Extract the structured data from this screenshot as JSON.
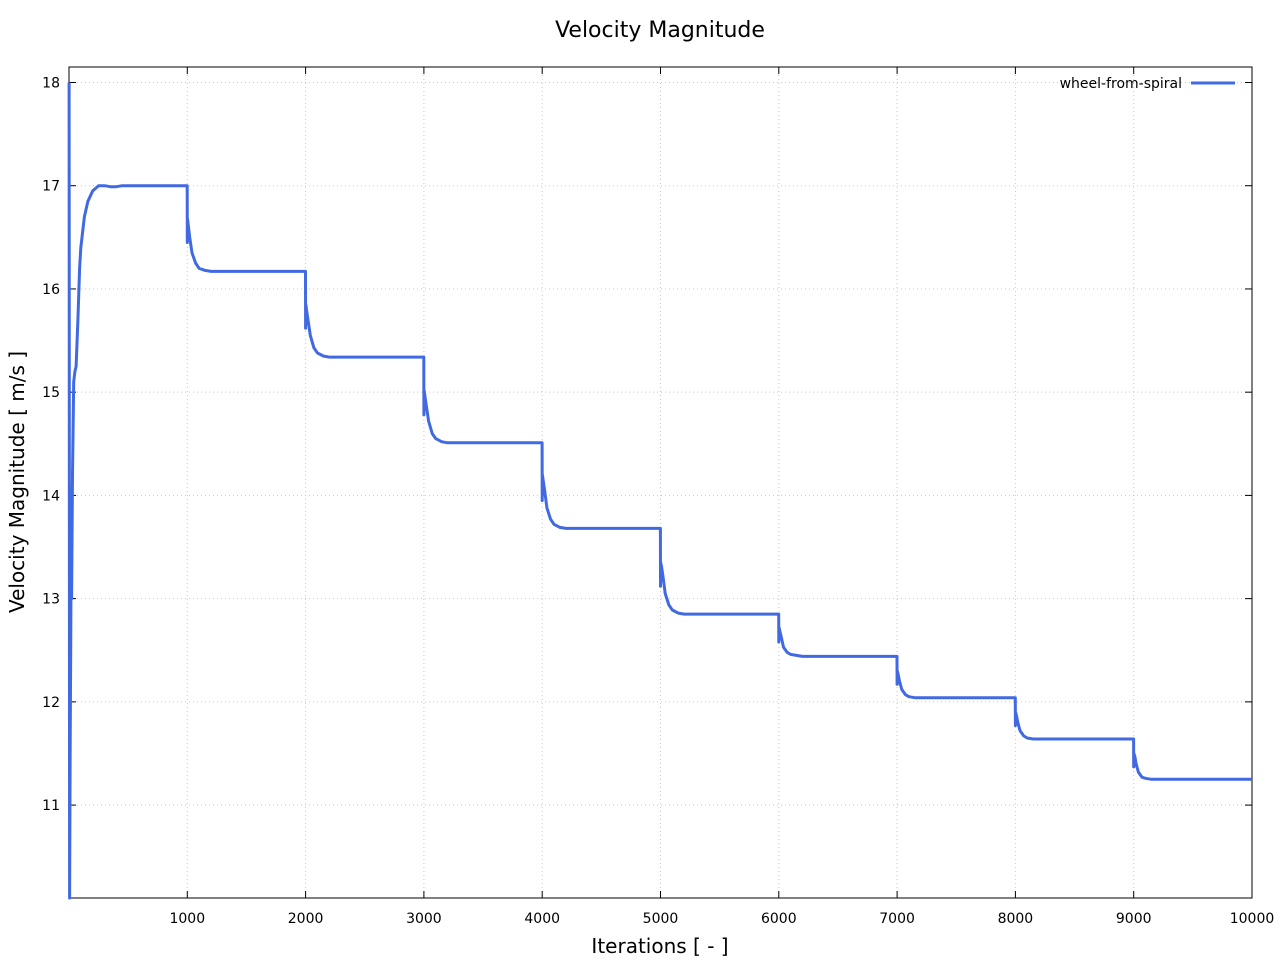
{
  "chart_data": {
    "type": "line",
    "title": "Velocity Magnitude",
    "xlabel": "Iterations [ - ]",
    "ylabel": "Velocity Magnitude [ m/s ]",
    "xlim": [
      0,
      10000
    ],
    "ylim": [
      10.1,
      18.15
    ],
    "xticks": [
      1000,
      2000,
      3000,
      4000,
      5000,
      6000,
      7000,
      8000,
      9000,
      10000
    ],
    "xtick_labels": [
      "1000",
      "2000",
      "3000",
      "4000",
      "5000",
      "6000",
      "7000",
      "8000",
      "9000",
      "10000"
    ],
    "yticks": [
      11,
      12,
      13,
      14,
      15,
      16,
      17,
      18
    ],
    "ytick_labels": [
      "11",
      "12",
      "13",
      "14",
      "15",
      "16",
      "17",
      "18"
    ],
    "grid": true,
    "legend_position": "top-right",
    "series": [
      {
        "name": "wheel-from-spiral",
        "color": "#4169e1",
        "x": [
          1,
          5,
          10,
          14,
          18,
          22,
          30,
          40,
          50,
          60,
          75,
          90,
          100,
          130,
          160,
          200,
          250,
          300,
          350,
          400,
          450,
          500,
          600,
          700,
          800,
          900,
          999,
          1000,
          1002,
          1010,
          1020,
          1040,
          1070,
          1100,
          1150,
          1200,
          1300,
          1400,
          1600,
          1800,
          1999,
          2000,
          2002,
          2010,
          2020,
          2040,
          2070,
          2100,
          2150,
          2200,
          2300,
          2400,
          2600,
          2800,
          2999,
          3000,
          3002,
          3010,
          3020,
          3040,
          3070,
          3100,
          3150,
          3200,
          3300,
          3400,
          3600,
          3800,
          3999,
          4000,
          4002,
          4010,
          4020,
          4040,
          4070,
          4100,
          4150,
          4200,
          4300,
          4400,
          4600,
          4800,
          4999,
          5000,
          5002,
          5010,
          5020,
          5040,
          5070,
          5100,
          5150,
          5200,
          5300,
          5400,
          5600,
          5800,
          5999,
          6000,
          6002,
          6010,
          6020,
          6040,
          6070,
          6100,
          6150,
          6200,
          6300,
          6400,
          6600,
          6800,
          6999,
          7000,
          7002,
          7010,
          7020,
          7040,
          7070,
          7100,
          7150,
          7200,
          7300,
          7400,
          7600,
          7800,
          7999,
          8000,
          8002,
          8010,
          8020,
          8040,
          8070,
          8100,
          8150,
          8200,
          8300,
          8400,
          8600,
          8800,
          8999,
          9000,
          9002,
          9010,
          9020,
          9040,
          9070,
          9100,
          9150,
          9200,
          9300,
          9400,
          9600,
          9800,
          10000
        ],
        "y": [
          18.0,
          10.1,
          11.6,
          12.5,
          13.4,
          13.0,
          14.2,
          15.1,
          15.2,
          15.25,
          15.7,
          16.2,
          16.4,
          16.7,
          16.85,
          16.95,
          17.0,
          17.0,
          16.99,
          16.99,
          17.0,
          17.0,
          17.0,
          17.0,
          17.0,
          17.0,
          17.0,
          16.45,
          16.68,
          16.6,
          16.5,
          16.35,
          16.25,
          16.2,
          16.18,
          16.17,
          16.17,
          16.17,
          16.17,
          16.17,
          16.17,
          15.62,
          15.85,
          15.78,
          15.7,
          15.55,
          15.43,
          15.38,
          15.35,
          15.34,
          15.34,
          15.34,
          15.34,
          15.34,
          15.34,
          14.78,
          15.02,
          14.95,
          14.87,
          14.72,
          14.6,
          14.55,
          14.52,
          14.51,
          14.51,
          14.51,
          14.51,
          14.51,
          14.51,
          13.95,
          14.2,
          14.13,
          14.05,
          13.88,
          13.77,
          13.72,
          13.69,
          13.68,
          13.68,
          13.68,
          13.68,
          13.68,
          13.68,
          13.12,
          13.35,
          13.3,
          13.22,
          13.05,
          12.94,
          12.89,
          12.86,
          12.85,
          12.85,
          12.85,
          12.85,
          12.85,
          12.85,
          12.58,
          12.72,
          12.68,
          12.63,
          12.53,
          12.48,
          12.46,
          12.45,
          12.44,
          12.44,
          12.44,
          12.44,
          12.44,
          12.44,
          12.17,
          12.3,
          12.26,
          12.2,
          12.12,
          12.07,
          12.05,
          12.04,
          12.04,
          12.04,
          12.04,
          12.04,
          12.04,
          12.04,
          11.77,
          11.9,
          11.86,
          11.8,
          11.72,
          11.67,
          11.65,
          11.64,
          11.64,
          11.64,
          11.64,
          11.64,
          11.64,
          11.64,
          11.37,
          11.5,
          11.47,
          11.4,
          11.32,
          11.27,
          11.26,
          11.25,
          11.25,
          11.25,
          11.25,
          11.25,
          11.25,
          11.25
        ]
      }
    ]
  }
}
